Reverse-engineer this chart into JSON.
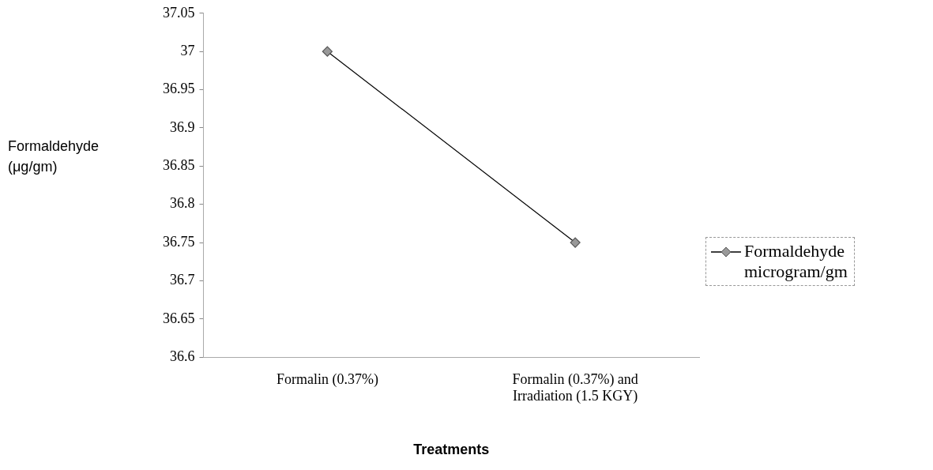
{
  "chart_data": {
    "type": "line",
    "xlabel": "Treatments",
    "ylabel": "Formaldehyde (μg/gm)",
    "categories": [
      "Formalin (0.37%)",
      "Formalin (0.37%) and Irradiation (1.5 KGY)"
    ],
    "series": [
      {
        "name": "Formaldehyde microgram/gm",
        "color": "#000000",
        "values": [
          37,
          36.75
        ]
      }
    ],
    "ylim": [
      36.6,
      37.05
    ],
    "yticks": [
      36.6,
      36.65,
      36.7,
      36.75,
      36.8,
      36.85,
      36.9,
      36.95,
      37,
      37.05
    ],
    "grid": false,
    "legend": "right",
    "marker": "diamond",
    "line_style": "solid"
  }
}
